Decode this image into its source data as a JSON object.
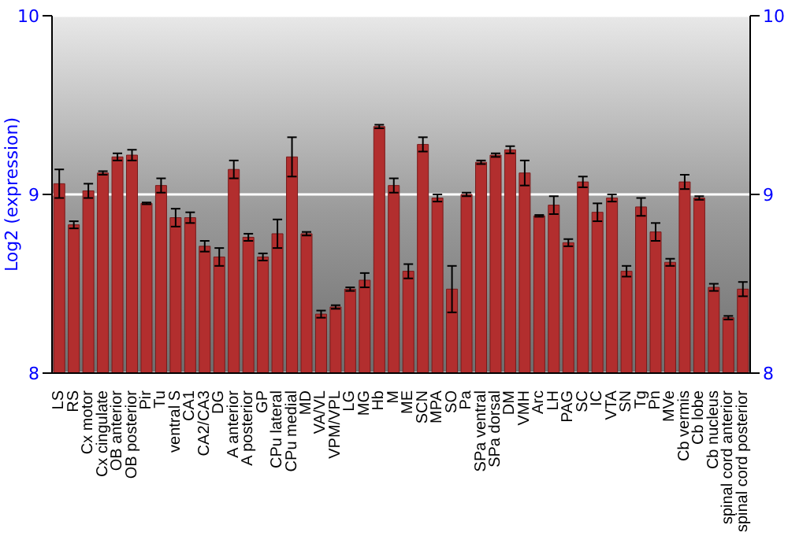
{
  "chart_data": {
    "type": "bar",
    "ylabel": "Log2 (expression)",
    "grid": "y",
    "color": "#b22e2e",
    "categories": [
      "LS",
      "RS",
      "Cx motor",
      "Cx cingulate",
      "OB anterior",
      "OB posterior",
      "Pir",
      "Tu",
      "ventral S",
      "CA1",
      "CA2/CA3",
      "DG",
      "A anterior",
      "A posterior",
      "GP",
      "CPu lateral",
      "CPu medial",
      "MD",
      "VA/VL",
      "VPM/VPL",
      "LG",
      "MG",
      "Hb",
      "M",
      "ME",
      "SCN",
      "MPA",
      "SO",
      "Pa",
      "SPa ventral",
      "SPa dorsal",
      "DM",
      "VMH",
      "Arc",
      "LH",
      "PAG",
      "SC",
      "IC",
      "VTA",
      "SN",
      "Tg",
      "Pn",
      "MVe",
      "Cb vermis",
      "Cb lobe",
      "Cb nucleus",
      "spinal cord anterior",
      "spinal cord posterior"
    ],
    "values": [
      9.06,
      8.83,
      9.02,
      9.12,
      9.21,
      9.22,
      8.95,
      9.05,
      8.87,
      8.87,
      8.71,
      8.65,
      9.14,
      8.76,
      8.65,
      8.78,
      9.21,
      8.78,
      8.33,
      8.37,
      8.47,
      8.52,
      9.38,
      9.05,
      8.57,
      9.28,
      8.98,
      8.47,
      9.0,
      9.18,
      9.22,
      9.25,
      9.12,
      8.88,
      8.94,
      8.73,
      9.07,
      8.9,
      8.98,
      8.57,
      8.93,
      8.79,
      8.62,
      9.07,
      8.98,
      8.48,
      8.31,
      8.47
    ],
    "errors": [
      0.08,
      0.02,
      0.04,
      0.01,
      0.02,
      0.03,
      0.005,
      0.04,
      0.05,
      0.03,
      0.03,
      0.05,
      0.05,
      0.02,
      0.02,
      0.08,
      0.11,
      0.01,
      0.02,
      0.01,
      0.01,
      0.04,
      0.01,
      0.04,
      0.04,
      0.04,
      0.02,
      0.13,
      0.01,
      0.01,
      0.01,
      0.02,
      0.07,
      0.005,
      0.05,
      0.02,
      0.03,
      0.05,
      0.02,
      0.03,
      0.05,
      0.05,
      0.02,
      0.04,
      0.01,
      0.02,
      0.01,
      0.04
    ],
    "ylim": [
      8,
      10
    ],
    "yticks": [
      8,
      9,
      10
    ],
    "y2lim": [
      8,
      10
    ],
    "y2ticks": [
      8,
      9,
      10
    ]
  }
}
